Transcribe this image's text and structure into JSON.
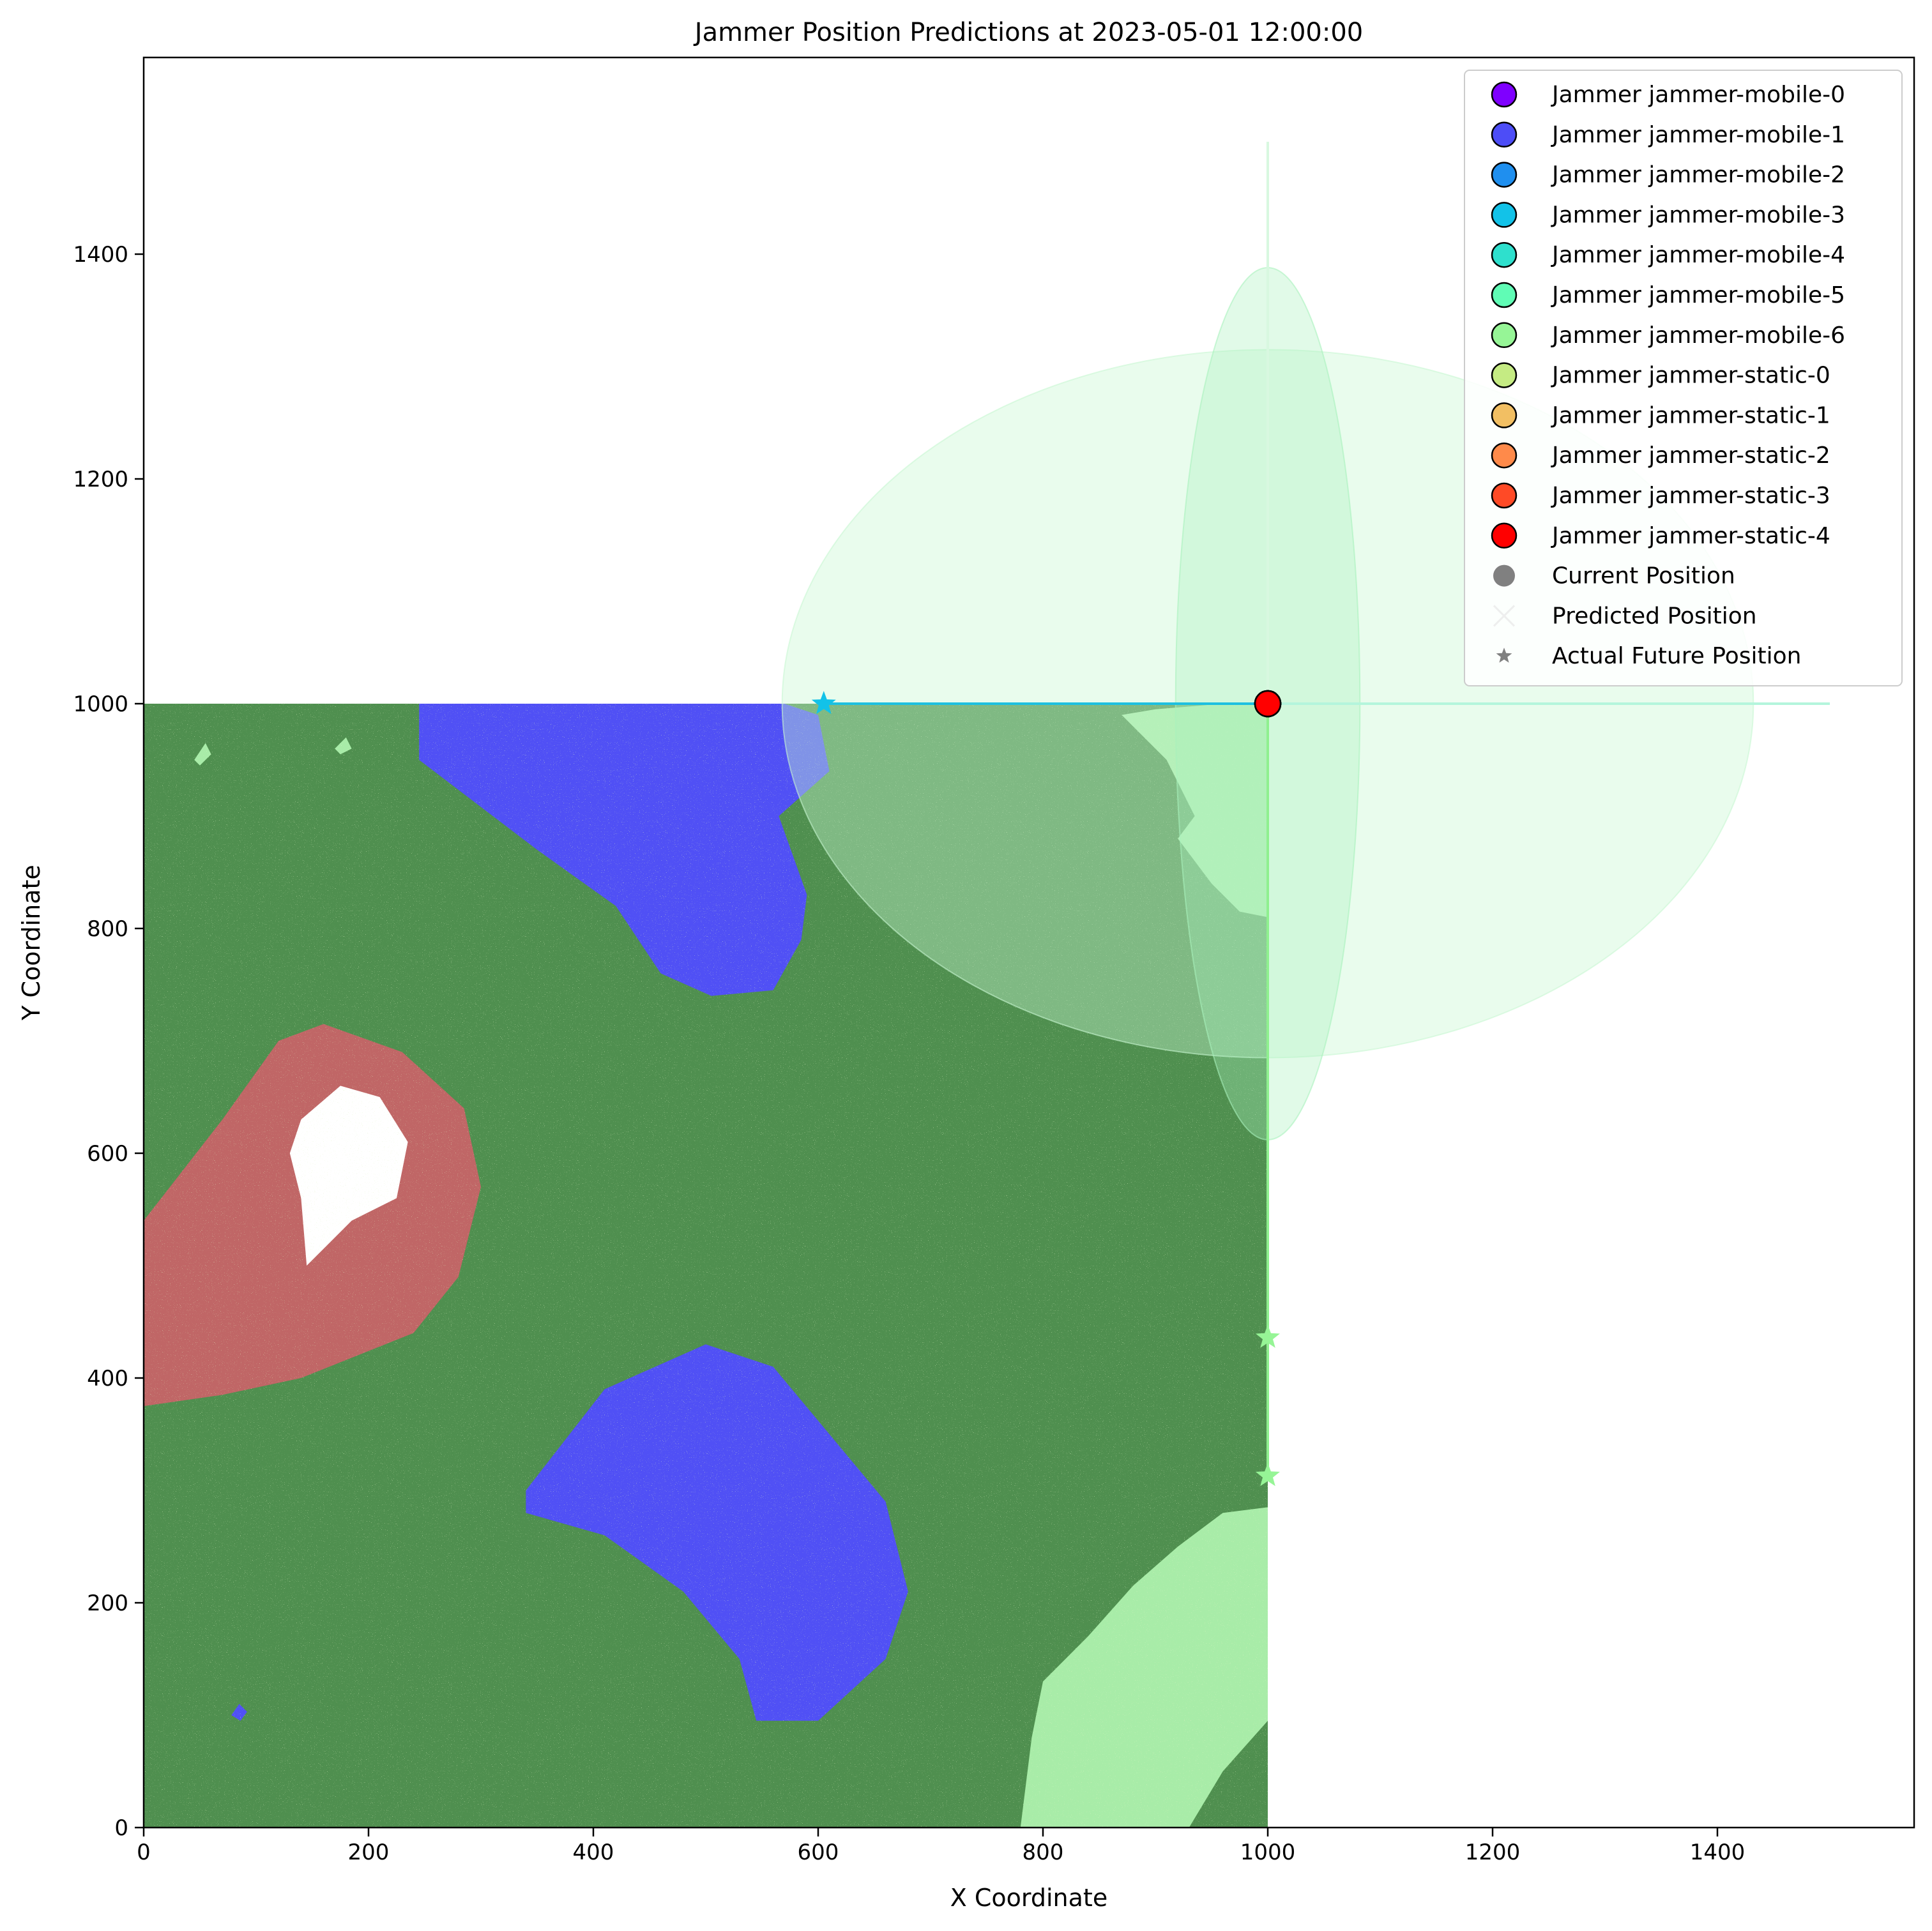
{
  "chart_data": {
    "type": "scatter",
    "title": "Jammer Position Predictions at 2023-05-01 12:00:00",
    "xlabel": "X Coordinate",
    "ylabel": "Y Coordinate",
    "xlim": [
      0,
      1575
    ],
    "ylim": [
      0,
      1575
    ],
    "xticks": [
      0,
      200,
      400,
      600,
      800,
      1000,
      1200,
      1400
    ],
    "yticks": [
      0,
      200,
      400,
      600,
      800,
      1000,
      1200,
      1400
    ],
    "grid": false,
    "legend_position": "top-right",
    "background_map": {
      "extent": {
        "x": [
          0,
          1000
        ],
        "y": [
          0,
          1000
        ]
      },
      "base_color": "#4f8f4f",
      "regions": [
        {
          "color": "#5050f5",
          "points": [
            [
              245,
              1000
            ],
            [
              570,
              1000
            ],
            [
              600,
              990
            ],
            [
              610,
              940
            ],
            [
              565,
              900
            ],
            [
              590,
              830
            ],
            [
              585,
              790
            ],
            [
              560,
              745
            ],
            [
              505,
              740
            ],
            [
              460,
              760
            ],
            [
              420,
              820
            ],
            [
              350,
              870
            ],
            [
              245,
              950
            ]
          ]
        },
        {
          "color": "#5050f5",
          "points": [
            [
              340,
              300
            ],
            [
              410,
              390
            ],
            [
              500,
              430
            ],
            [
              560,
              410
            ],
            [
              610,
              350
            ],
            [
              660,
              290
            ],
            [
              680,
              210
            ],
            [
              660,
              150
            ],
            [
              600,
              95
            ],
            [
              545,
              95
            ],
            [
              530,
              150
            ],
            [
              480,
              210
            ],
            [
              410,
              260
            ],
            [
              340,
              280
            ]
          ]
        },
        {
          "color": "#c06666",
          "points": [
            [
              0,
              540
            ],
            [
              70,
              630
            ],
            [
              120,
              700
            ],
            [
              160,
              715
            ],
            [
              230,
              690
            ],
            [
              285,
              640
            ],
            [
              300,
              570
            ],
            [
              280,
              490
            ],
            [
              240,
              440
            ],
            [
              140,
              400
            ],
            [
              70,
              385
            ],
            [
              0,
              375
            ]
          ]
        },
        {
          "color": "#ffffff",
          "points": [
            [
              140,
              630
            ],
            [
              175,
              660
            ],
            [
              210,
              650
            ],
            [
              235,
              610
            ],
            [
              225,
              560
            ],
            [
              185,
              540
            ],
            [
              145,
              500
            ],
            [
              140,
              560
            ],
            [
              130,
              600
            ]
          ]
        },
        {
          "color": "#a8eca8",
          "points": [
            [
              870,
              990
            ],
            [
              910,
              950
            ],
            [
              935,
              900
            ],
            [
              920,
              880
            ],
            [
              950,
              840
            ],
            [
              975,
              815
            ],
            [
              1000,
              810
            ],
            [
              1000,
              1000
            ],
            [
              960,
              1000
            ],
            [
              900,
              995
            ]
          ]
        },
        {
          "color": "#a8eca8",
          "points": [
            [
              780,
              0
            ],
            [
              790,
              80
            ],
            [
              800,
              130
            ],
            [
              840,
              170
            ],
            [
              880,
              215
            ],
            [
              920,
              250
            ],
            [
              960,
              280
            ],
            [
              1000,
              285
            ],
            [
              1000,
              0
            ]
          ]
        },
        {
          "color": "#4f8f4f",
          "points": [
            [
              930,
              0
            ],
            [
              960,
              50
            ],
            [
              1000,
              95
            ],
            [
              1000,
              0
            ]
          ]
        },
        {
          "color": "#a8eca8",
          "points": [
            [
              45,
              950
            ],
            [
              55,
              965
            ],
            [
              60,
              955
            ],
            [
              50,
              945
            ]
          ]
        },
        {
          "color": "#a8eca8",
          "points": [
            [
              170,
              960
            ],
            [
              180,
              970
            ],
            [
              185,
              960
            ],
            [
              175,
              955
            ]
          ]
        },
        {
          "color": "#5050f5",
          "points": [
            [
              78,
              100
            ],
            [
              85,
              110
            ],
            [
              92,
              103
            ],
            [
              86,
              95
            ]
          ]
        }
      ]
    },
    "uncertainty_ellipses": [
      {
        "cx": 1000,
        "cy": 1000,
        "rx": 432,
        "ry": 315,
        "color": "#c8f7d2",
        "opacity": 0.4
      },
      {
        "cx": 1000,
        "cy": 1000,
        "rx": 82,
        "ry": 388,
        "color": "#a8f2bc",
        "opacity": 0.35
      }
    ],
    "trajectories": [
      {
        "color": "#1ec0e0",
        "points": [
          [
            605,
            1000
          ],
          [
            1000,
            1000
          ]
        ]
      },
      {
        "color": "#8ff08f",
        "points": [
          [
            1000,
            1000
          ],
          [
            1000,
            436
          ],
          [
            1000,
            313
          ]
        ]
      },
      {
        "color": "#b4f5dc",
        "points": [
          [
            1000,
            1000
          ],
          [
            1500,
            1000
          ]
        ]
      },
      {
        "color": "#d8f8e0",
        "points": [
          [
            1000,
            1000
          ],
          [
            1000,
            1500
          ]
        ]
      }
    ],
    "series": [
      {
        "name": "Jammer jammer-mobile-0",
        "color": "#7f00ff",
        "current": [
          1000,
          1000
        ]
      },
      {
        "name": "Jammer jammer-mobile-1",
        "color": "#4d4df7",
        "current": [
          1000,
          1000
        ]
      },
      {
        "name": "Jammer jammer-mobile-2",
        "color": "#1f8fef",
        "current": [
          1000,
          1000
        ]
      },
      {
        "name": "Jammer jammer-mobile-3",
        "color": "#12c2e8",
        "current": [
          1000,
          1000
        ],
        "actual_future": [
          605,
          1000
        ]
      },
      {
        "name": "Jammer jammer-mobile-4",
        "color": "#2ee0cd",
        "current": [
          1000,
          1000
        ]
      },
      {
        "name": "Jammer jammer-mobile-5",
        "color": "#60fcb5",
        "current": [
          1000,
          1000
        ]
      },
      {
        "name": "Jammer jammer-mobile-6",
        "color": "#96f596",
        "current": [
          1000,
          1000
        ],
        "actual_future": [
          [
            1000,
            436
          ],
          [
            1000,
            313
          ]
        ]
      },
      {
        "name": "Jammer jammer-static-0",
        "color": "#c5eb83",
        "current": [
          1000,
          1000
        ]
      },
      {
        "name": "Jammer jammer-static-1",
        "color": "#f2bf63",
        "current": [
          1000,
          1000
        ]
      },
      {
        "name": "Jammer jammer-static-2",
        "color": "#ff8a4a",
        "current": [
          1000,
          1000
        ]
      },
      {
        "name": "Jammer jammer-static-3",
        "color": "#ff4a26",
        "current": [
          1000,
          1000
        ]
      },
      {
        "name": "Jammer jammer-static-4",
        "color": "#ff0000",
        "current": [
          1000,
          1000
        ]
      }
    ],
    "legend_extra": [
      {
        "name": "Current Position",
        "marker": "circle",
        "color": "#808080"
      },
      {
        "name": "Predicted Position",
        "marker": "x",
        "color": "#eeeeee"
      },
      {
        "name": "Actual Future Position",
        "marker": "star",
        "color": "#808080"
      }
    ]
  }
}
